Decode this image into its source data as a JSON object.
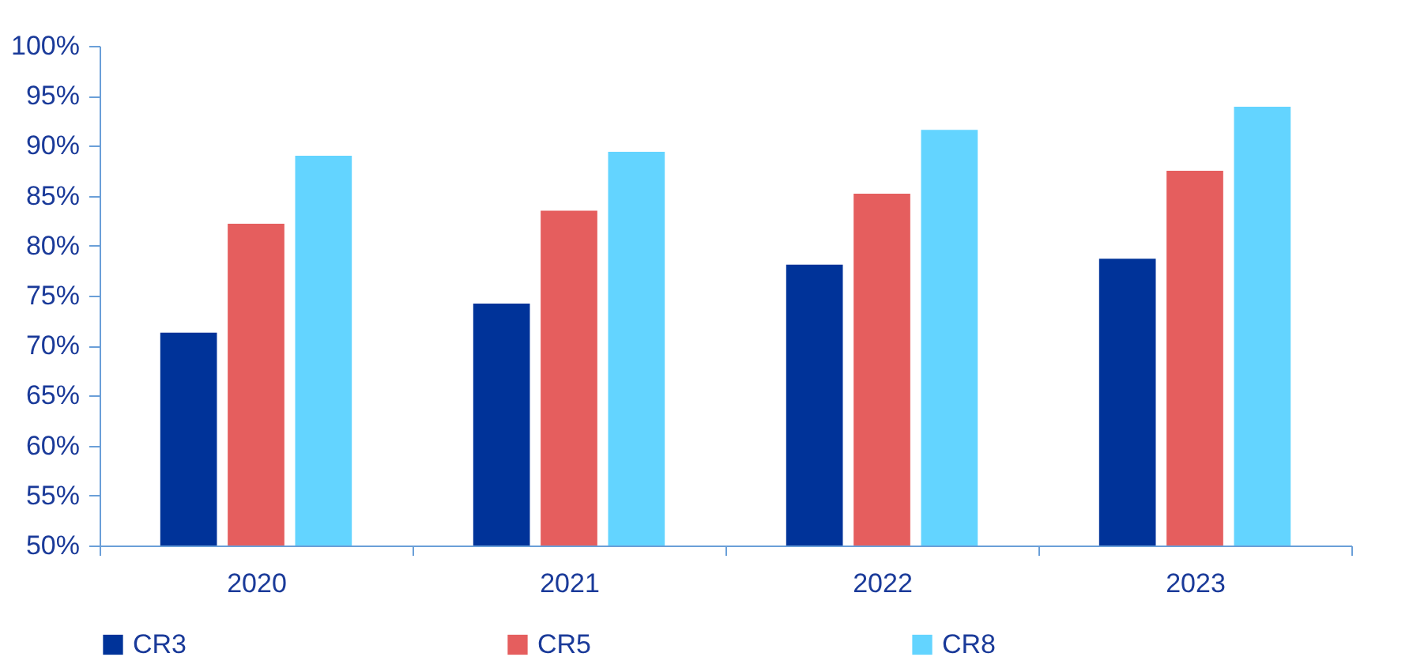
{
  "chart_data": {
    "type": "bar",
    "categories": [
      "2020",
      "2021",
      "2022",
      "2023"
    ],
    "series": [
      {
        "name": "CR3",
        "color": "#003399",
        "values": [
          71.3,
          74.2,
          78.1,
          78.7
        ]
      },
      {
        "name": "CR5",
        "color": "#e55e5e",
        "values": [
          82.2,
          83.5,
          85.2,
          87.5
        ]
      },
      {
        "name": "CR8",
        "color": "#63d4ff",
        "values": [
          89.0,
          89.4,
          91.6,
          93.9
        ]
      }
    ],
    "ylim": [
      50,
      100
    ],
    "yticks": [
      {
        "value": 50,
        "label": "50%"
      },
      {
        "value": 55,
        "label": "55%"
      },
      {
        "value": 60,
        "label": "60%"
      },
      {
        "value": 65,
        "label": "65%"
      },
      {
        "value": 70,
        "label": "70%"
      },
      {
        "value": 75,
        "label": "75%"
      },
      {
        "value": 80,
        "label": "80%"
      },
      {
        "value": 85,
        "label": "85%"
      },
      {
        "value": 90,
        "label": "90%"
      },
      {
        "value": 95,
        "label": "95%"
      },
      {
        "value": 100,
        "label": "100%"
      }
    ],
    "grid": false,
    "legend": "bottom"
  }
}
